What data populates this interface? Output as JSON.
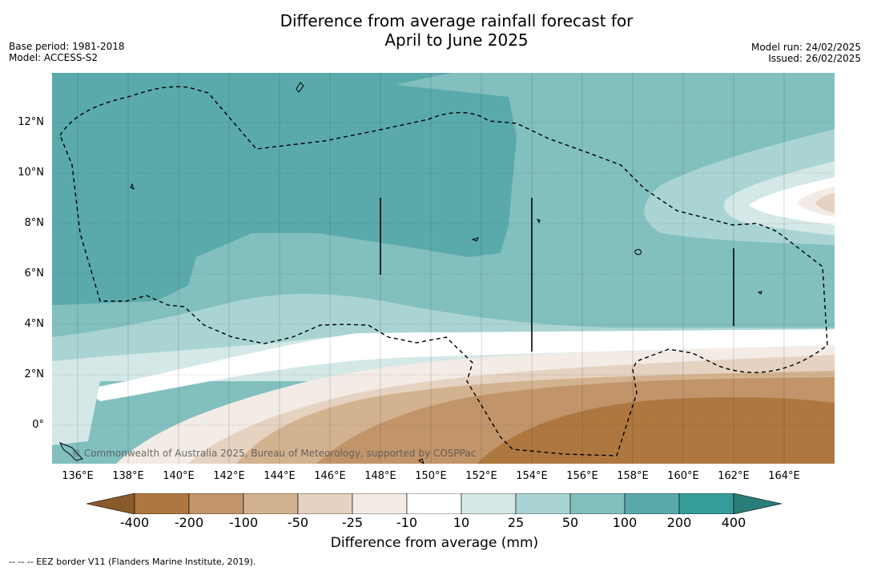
{
  "title": {
    "line1": "Difference from average rainfall forecast for",
    "line2": "April to June 2025"
  },
  "meta": {
    "base_period": "Base period: 1981-2018",
    "model": "Model: ACCESS-S2",
    "model_run": "Model run: 24/02/2025",
    "issued": "Issued: 26/02/2025"
  },
  "map": {
    "lat_labels": [
      "12°N",
      "10°N",
      "8°N",
      "6°N",
      "4°N",
      "2°N",
      "0°"
    ],
    "lon_labels": [
      "136°E",
      "138°E",
      "140°E",
      "142°E",
      "144°E",
      "146°E",
      "148°E",
      "150°E",
      "152°E",
      "154°E",
      "156°E",
      "158°E",
      "160°E",
      "162°E",
      "164°E"
    ],
    "copyright": "© Commonwealth of Australia 2025, Bureau of Meteorology, supported by COSPPac",
    "eez_border_style": "dashed-black"
  },
  "legend": {
    "title": "Difference from average (mm)",
    "tick_labels": [
      "-400",
      "-200",
      "-100",
      "-50",
      "-25",
      "-10",
      "10",
      "25",
      "50",
      "100",
      "200",
      "400"
    ],
    "colors": {
      "lt_-400": "#8a5a2c",
      "-400_-200": "#ad773f",
      "-200_-100": "#c29469",
      "-100_-50": "#d3b28f",
      "-50_-25": "#e5d2c0",
      "-25_-10": "#f3ebe5",
      "-10_10": "#ffffff",
      "10_25": "#d4e8e7",
      "25_50": "#aad4d4",
      "50_100": "#82bfbf",
      "100_200": "#5aaaab",
      "200_400": "#369c99",
      "gt_400": "#2a7d78"
    }
  },
  "footer": {
    "eez_note": "-- -- -- EEZ border V11 (Flanders Marine Institute, 2019)."
  }
}
